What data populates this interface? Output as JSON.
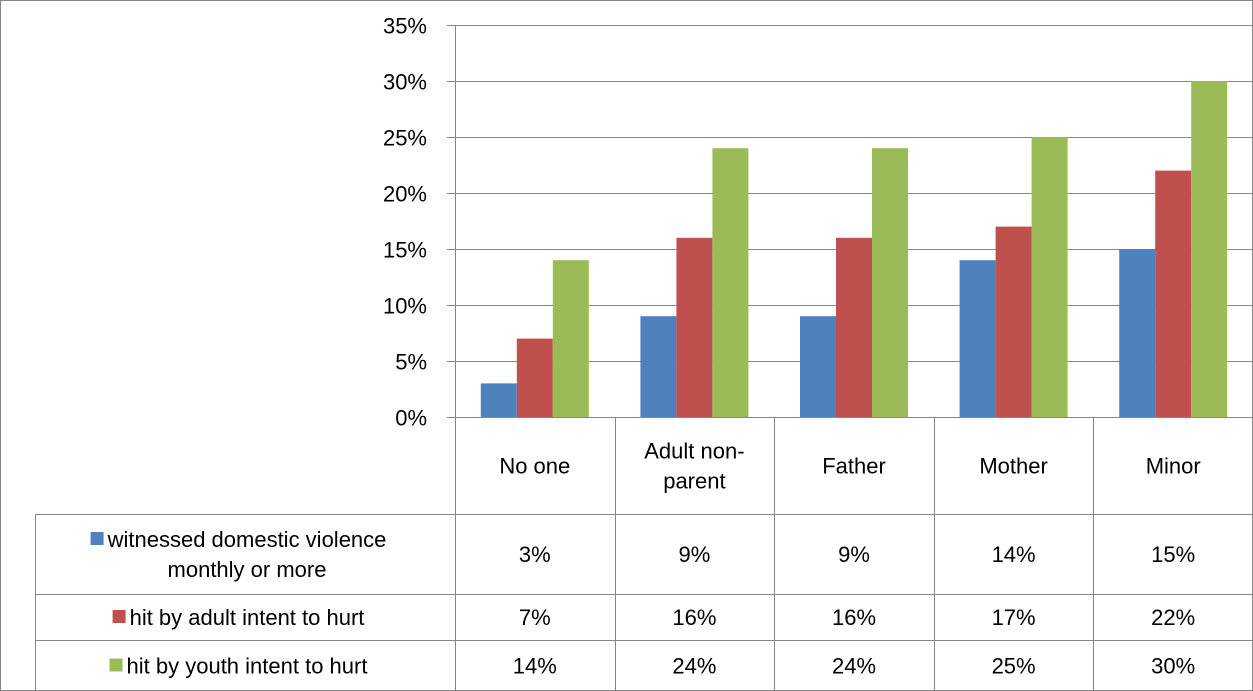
{
  "chart_data": {
    "type": "bar",
    "title": "",
    "xlabel": "",
    "ylabel": "",
    "categories": [
      [
        "No one"
      ],
      [
        "Adult non-",
        "parent"
      ],
      [
        "Father"
      ],
      [
        "Mother"
      ],
      [
        "Minor"
      ]
    ],
    "series": [
      {
        "name": [
          "witnessed domestic violence",
          "monthly or more"
        ],
        "color": "#4F81BD",
        "values": [
          3,
          9,
          9,
          14,
          15
        ],
        "labels": [
          "3%",
          "9%",
          "9%",
          "14%",
          "15%"
        ]
      },
      {
        "name": [
          "hit by adult intent to hurt"
        ],
        "color": "#C0504D",
        "values": [
          7,
          16,
          16,
          17,
          22
        ],
        "labels": [
          "7%",
          "16%",
          "16%",
          "17%",
          "22%"
        ]
      },
      {
        "name": [
          "hit by youth intent to hurt"
        ],
        "color": "#9BBB59",
        "values": [
          14,
          24,
          24,
          25,
          30
        ],
        "labels": [
          "14%",
          "24%",
          "24%",
          "25%",
          "30%"
        ]
      }
    ],
    "ylim": [
      0,
      35
    ],
    "yticks": [
      "0%",
      "5%",
      "10%",
      "15%",
      "20%",
      "25%",
      "30%",
      "35%"
    ],
    "grid": true,
    "legend": "data-table"
  }
}
